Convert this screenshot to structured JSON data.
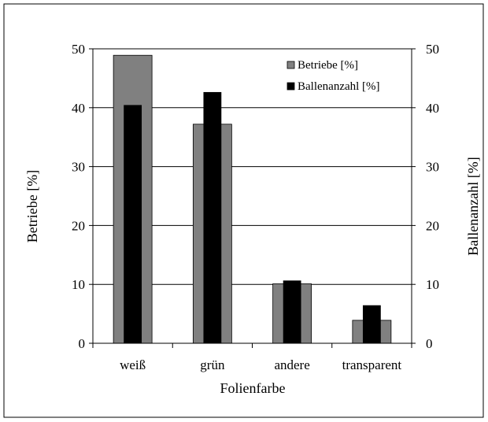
{
  "chart_data": {
    "type": "bar",
    "title": "",
    "xlabel": "Folienfarbe",
    "ylabel_left": "Betriebe [%]",
    "ylabel_right": "Ballenanzahl [%]",
    "categories": [
      "weiß",
      "grün",
      "andere",
      "transparent"
    ],
    "ylim": [
      0,
      50
    ],
    "y_ticks": [
      0,
      10,
      20,
      30,
      40,
      50
    ],
    "grid": true,
    "legend_position": "top-right",
    "series": [
      {
        "name": "Betriebe [%]",
        "axis": "left",
        "values": [
          48.9,
          37.2,
          10.1,
          3.9
        ],
        "color": "#808080"
      },
      {
        "name": "Ballenanzahl [%]",
        "axis": "right",
        "values": [
          40.4,
          42.6,
          10.6,
          6.4
        ],
        "color": "#000000"
      }
    ]
  }
}
